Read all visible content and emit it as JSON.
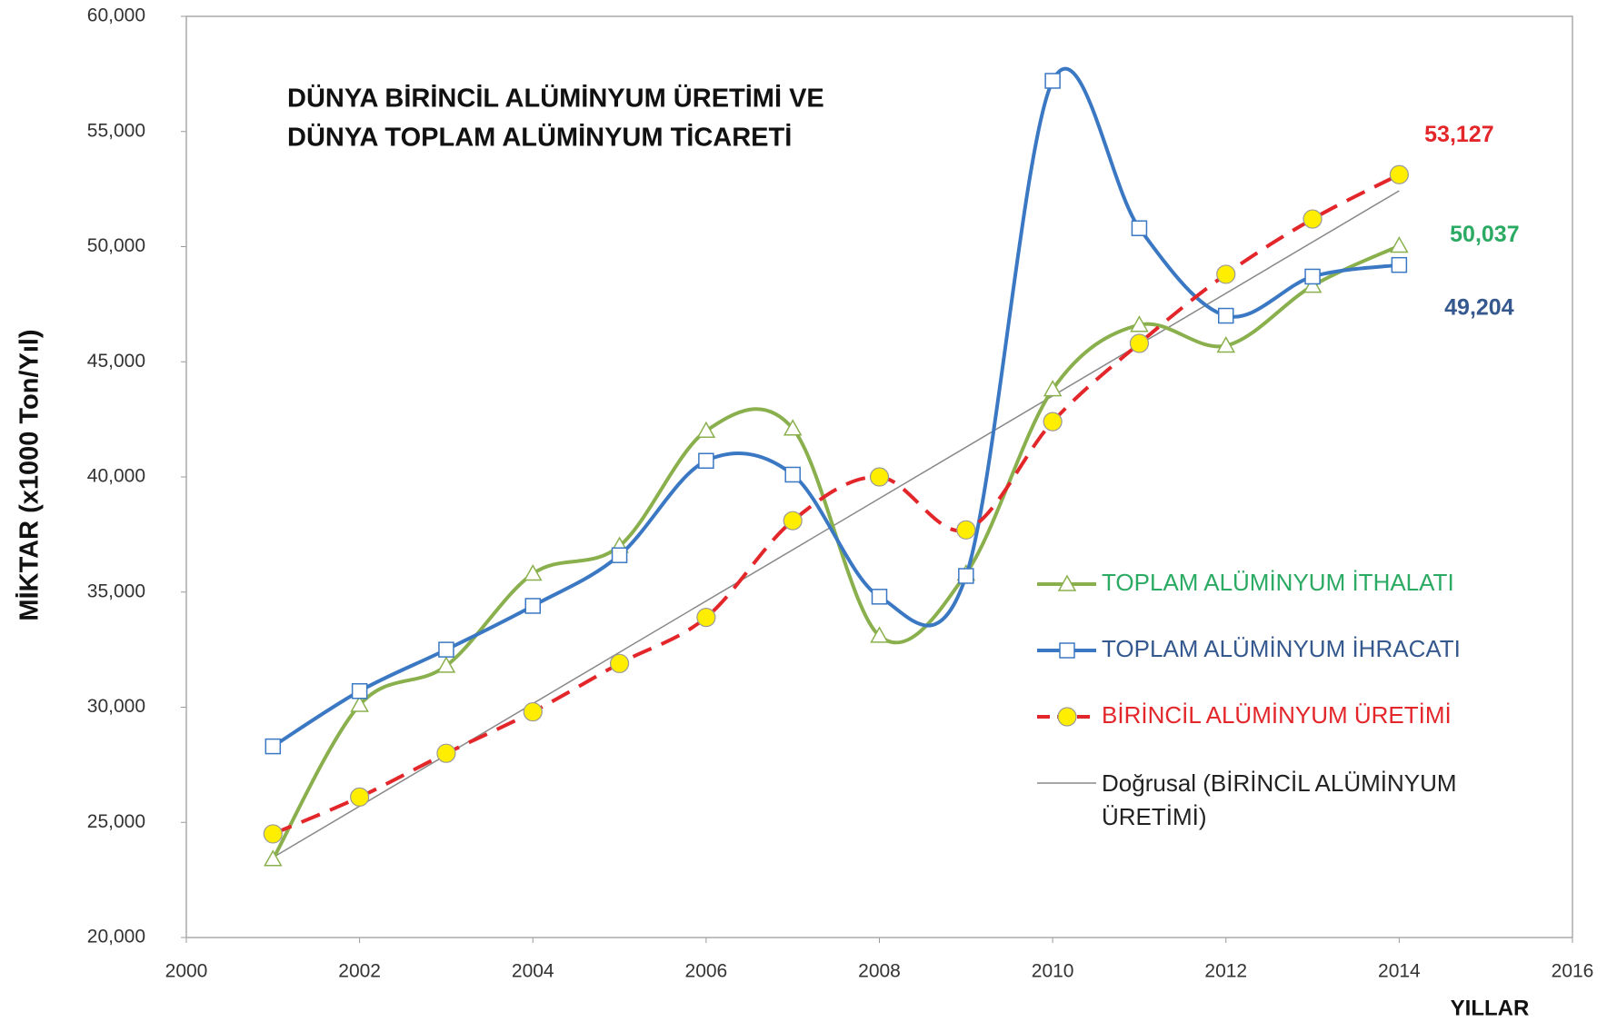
{
  "chart_data": {
    "type": "line",
    "title": [
      "DÜNYA BİRİNCİL ALÜMİNYUM ÜRETİMİ VE",
      "DÜNYA TOPLAM ALÜMİNYUM TİCARETİ"
    ],
    "xlabel": "YILLAR",
    "ylabel": "MİKTAR (x1000 Ton/Yıl)",
    "x": [
      2001,
      2002,
      2003,
      2004,
      2005,
      2006,
      2007,
      2008,
      2009,
      2010,
      2011,
      2012,
      2013,
      2014
    ],
    "series": [
      {
        "name": "TOPLAM ALÜMİNYUM İTHALATI",
        "color": "#8ab04e",
        "label_color": "#2aaa62",
        "marker": "triangle",
        "smooth": true,
        "values": [
          23400,
          30100,
          31800,
          35800,
          37000,
          42000,
          42100,
          33100,
          35800,
          43800,
          46600,
          45700,
          48300,
          50037
        ],
        "value_labels": [
          null,
          null,
          null,
          null,
          null,
          null,
          null,
          null,
          null,
          null,
          null,
          null,
          null,
          "50,037"
        ]
      },
      {
        "name": "TOPLAM ALÜMİNYUM İHRACATI",
        "color": "#3b78c3",
        "label_color": "#35598f",
        "marker": "square",
        "smooth": true,
        "values": [
          28300,
          30700,
          32500,
          34400,
          36600,
          40700,
          40100,
          34800,
          35700,
          57200,
          50800,
          47000,
          48700,
          49204
        ],
        "value_labels": [
          null,
          null,
          null,
          null,
          null,
          null,
          null,
          null,
          null,
          null,
          null,
          null,
          null,
          "49,204"
        ]
      },
      {
        "name": "BİRİNCİL ALÜMİNYUM ÜRETİMİ",
        "color": "#e3262a",
        "label_color": "#e3262a",
        "marker": "circle",
        "smooth": true,
        "dashed": true,
        "values": [
          24500,
          26100,
          28000,
          29800,
          31900,
          33900,
          38100,
          40000,
          37700,
          42400,
          45800,
          48800,
          51200,
          53127
        ],
        "value_labels": [
          null,
          null,
          null,
          null,
          null,
          null,
          null,
          null,
          null,
          null,
          null,
          null,
          null,
          "53,127"
        ]
      }
    ],
    "trendline": {
      "name": "Doğrusal (BİRİNCİL ALÜMİNYUM ÜRETİMİ)",
      "color": "#888888"
    },
    "xlim": [
      2000,
      2016
    ],
    "xticks": [
      2000,
      2002,
      2004,
      2006,
      2008,
      2010,
      2012,
      2014,
      2016
    ],
    "ylim": [
      20000,
      60000
    ],
    "yticks": [
      {
        "value": 20000,
        "label": "20,000"
      },
      {
        "value": 25000,
        "label": "25,000"
      },
      {
        "value": 30000,
        "label": "30,000"
      },
      {
        "value": 35000,
        "label": "35,000"
      },
      {
        "value": 40000,
        "label": "40,000"
      },
      {
        "value": 45000,
        "label": "45,000"
      },
      {
        "value": 50000,
        "label": "50,000"
      },
      {
        "value": 55000,
        "label": "55,000"
      },
      {
        "value": 60000,
        "label": "60,000"
      }
    ]
  }
}
